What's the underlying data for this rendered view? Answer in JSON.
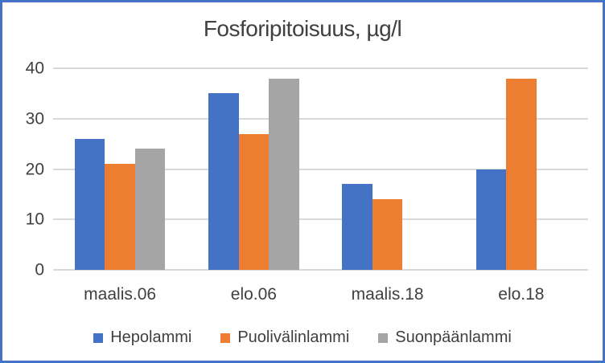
{
  "figure": {
    "border_color": "#4472C4",
    "background_color": "#FFFFFF",
    "gridline_color": "#D9D9D9",
    "text_color": "#404040"
  },
  "chart_data": {
    "type": "bar",
    "title": "Fosforipitoisuus, µg/l",
    "categories": [
      "maalis.06",
      "elo.06",
      "maalis.18",
      "elo.18"
    ],
    "series": [
      {
        "name": "Hepolammi",
        "color": "#4472C4",
        "values": [
          26,
          35,
          17,
          20
        ]
      },
      {
        "name": "Puolivälinlammi",
        "color": "#ED7D31",
        "values": [
          21,
          27,
          14,
          38
        ]
      },
      {
        "name": "Suonpäänlammi",
        "color": "#A5A5A5",
        "values": [
          24,
          38,
          null,
          null
        ]
      }
    ],
    "xlabel": "",
    "ylabel": "",
    "ylim": [
      0,
      40
    ],
    "yticks": [
      0,
      10,
      20,
      30,
      40
    ],
    "grid": true,
    "legend_position": "bottom"
  }
}
